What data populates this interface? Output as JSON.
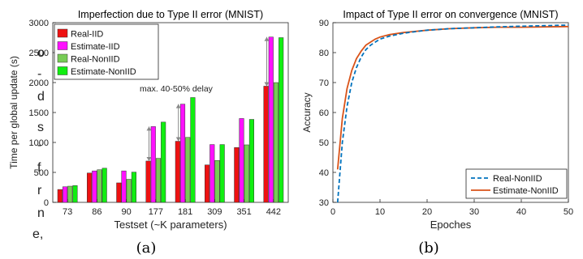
{
  "page": {
    "left_text_fragments": [
      "o",
      "-",
      "d",
      "s",
      "-",
      "f",
      "r",
      "n",
      "e,"
    ]
  },
  "chart_data": [
    {
      "type": "bar",
      "title": "Imperfection due to Type II error (MNIST)",
      "xlabel": "Testset (~K parameters)",
      "ylabel": "Time per global update (s)",
      "caption": "(a)",
      "categories": [
        "73",
        "86",
        "90",
        "177",
        "181",
        "309",
        "351",
        "442"
      ],
      "ylim": [
        0,
        3000
      ],
      "yticks": [
        0,
        500,
        1000,
        1500,
        2000,
        2500,
        3000
      ],
      "legend_position": "top-left",
      "annotation": "max. 40-50% delay",
      "series": [
        {
          "name": "Real-IID",
          "color": "#ee1111",
          "values": [
            215,
            490,
            325,
            690,
            1020,
            625,
            915,
            1940
          ]
        },
        {
          "name": "Estimate-IID",
          "color": "#ff10ff",
          "values": [
            260,
            525,
            525,
            1265,
            1640,
            965,
            1400,
            2760
          ]
        },
        {
          "name": "Real-NonIID",
          "color": "#77cc55",
          "values": [
            270,
            545,
            385,
            735,
            1085,
            700,
            960,
            2000
          ]
        },
        {
          "name": "Estimate-NonIID",
          "color": "#11ee11",
          "values": [
            280,
            570,
            505,
            1340,
            1750,
            965,
            1385,
            2750
          ]
        }
      ],
      "arrows": [
        {
          "category": "177",
          "from": 690,
          "to": 1265
        },
        {
          "category": "181",
          "from": 1020,
          "to": 1640
        },
        {
          "category": "442",
          "from": 1940,
          "to": 2760
        }
      ]
    },
    {
      "type": "line",
      "title": "Impact of Type II error on convergence (MNIST)",
      "xlabel": "Epoches",
      "ylabel": "Accuracy",
      "caption": "(b)",
      "xlim": [
        0,
        50
      ],
      "ylim": [
        30,
        90
      ],
      "xticks": [
        0,
        10,
        20,
        30,
        40,
        50
      ],
      "yticks": [
        30,
        40,
        50,
        60,
        70,
        80,
        90
      ],
      "legend_position": "bottom-right",
      "series": [
        {
          "name": "Real-NonIID",
          "color": "#0072bd",
          "style": "dashed",
          "x": [
            1,
            2,
            3,
            4,
            5,
            6,
            7,
            8,
            9,
            10,
            12,
            15,
            20,
            25,
            30,
            35,
            40,
            45,
            50
          ],
          "y": [
            30,
            50,
            62,
            70,
            75,
            78.5,
            81,
            82.5,
            83.5,
            84.5,
            85.5,
            86.5,
            87.5,
            88,
            88.3,
            88.6,
            88.8,
            89,
            89.2
          ]
        },
        {
          "name": "Estimate-NonIID",
          "color": "#d95319",
          "style": "solid",
          "x": [
            1,
            2,
            3,
            4,
            5,
            6,
            7,
            8,
            9,
            10,
            12,
            15,
            20,
            25,
            30,
            35,
            40,
            45,
            50
          ],
          "y": [
            41,
            58,
            68,
            74,
            78,
            80.5,
            82.5,
            83.5,
            84.5,
            85.2,
            86,
            86.7,
            87.5,
            88,
            88.3,
            88.5,
            88.5,
            88.6,
            88.7
          ]
        }
      ]
    }
  ]
}
